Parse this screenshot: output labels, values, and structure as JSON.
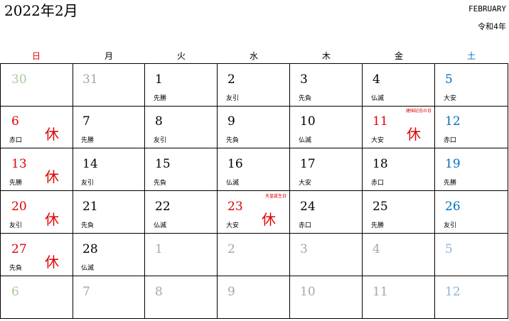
{
  "header": {
    "title": "2022年2月",
    "month_en": "FEBRUARY",
    "era": "令和4年"
  },
  "weekdays": [
    "日",
    "月",
    "火",
    "水",
    "木",
    "金",
    "土"
  ],
  "colors": {
    "sunday_holiday": "#e00000",
    "saturday": "#0070c0",
    "other_month": "#a6a6a6"
  },
  "weeks": [
    [
      {
        "day": "30",
        "rokuyo": "",
        "style": "greygreen",
        "kyu": "",
        "holiday": ""
      },
      {
        "day": "31",
        "rokuyo": "",
        "style": "grey",
        "kyu": "",
        "holiday": ""
      },
      {
        "day": "1",
        "rokuyo": "先勝",
        "style": "black",
        "kyu": "",
        "holiday": ""
      },
      {
        "day": "2",
        "rokuyo": "友引",
        "style": "black",
        "kyu": "",
        "holiday": ""
      },
      {
        "day": "3",
        "rokuyo": "先負",
        "style": "black",
        "kyu": "",
        "holiday": ""
      },
      {
        "day": "4",
        "rokuyo": "仏滅",
        "style": "black",
        "kyu": "",
        "holiday": ""
      },
      {
        "day": "5",
        "rokuyo": "大安",
        "style": "blue",
        "kyu": "",
        "holiday": ""
      }
    ],
    [
      {
        "day": "6",
        "rokuyo": "赤口",
        "style": "red",
        "kyu": "休",
        "holiday": ""
      },
      {
        "day": "7",
        "rokuyo": "先勝",
        "style": "black",
        "kyu": "",
        "holiday": ""
      },
      {
        "day": "8",
        "rokuyo": "友引",
        "style": "black",
        "kyu": "",
        "holiday": ""
      },
      {
        "day": "9",
        "rokuyo": "先負",
        "style": "black",
        "kyu": "",
        "holiday": ""
      },
      {
        "day": "10",
        "rokuyo": "仏滅",
        "style": "black",
        "kyu": "",
        "holiday": ""
      },
      {
        "day": "11",
        "rokuyo": "大安",
        "style": "red",
        "kyu": "休",
        "holiday": "建国記念の日"
      },
      {
        "day": "12",
        "rokuyo": "赤口",
        "style": "blue",
        "kyu": "",
        "holiday": ""
      }
    ],
    [
      {
        "day": "13",
        "rokuyo": "先勝",
        "style": "red",
        "kyu": "休",
        "holiday": ""
      },
      {
        "day": "14",
        "rokuyo": "友引",
        "style": "black",
        "kyu": "",
        "holiday": ""
      },
      {
        "day": "15",
        "rokuyo": "先負",
        "style": "black",
        "kyu": "",
        "holiday": ""
      },
      {
        "day": "16",
        "rokuyo": "仏滅",
        "style": "black",
        "kyu": "",
        "holiday": ""
      },
      {
        "day": "17",
        "rokuyo": "大安",
        "style": "black",
        "kyu": "",
        "holiday": ""
      },
      {
        "day": "18",
        "rokuyo": "赤口",
        "style": "black",
        "kyu": "",
        "holiday": ""
      },
      {
        "day": "19",
        "rokuyo": "先勝",
        "style": "blue",
        "kyu": "",
        "holiday": ""
      }
    ],
    [
      {
        "day": "20",
        "rokuyo": "友引",
        "style": "red",
        "kyu": "休",
        "holiday": ""
      },
      {
        "day": "21",
        "rokuyo": "先負",
        "style": "black",
        "kyu": "",
        "holiday": ""
      },
      {
        "day": "22",
        "rokuyo": "仏滅",
        "style": "black",
        "kyu": "",
        "holiday": ""
      },
      {
        "day": "23",
        "rokuyo": "大安",
        "style": "red",
        "kyu": "休",
        "holiday": "天皇誕生日"
      },
      {
        "day": "24",
        "rokuyo": "赤口",
        "style": "black",
        "kyu": "",
        "holiday": ""
      },
      {
        "day": "25",
        "rokuyo": "先勝",
        "style": "black",
        "kyu": "",
        "holiday": ""
      },
      {
        "day": "26",
        "rokuyo": "友引",
        "style": "blue",
        "kyu": "",
        "holiday": ""
      }
    ],
    [
      {
        "day": "27",
        "rokuyo": "先負",
        "style": "red",
        "kyu": "休",
        "holiday": ""
      },
      {
        "day": "28",
        "rokuyo": "仏滅",
        "style": "black",
        "kyu": "",
        "holiday": ""
      },
      {
        "day": "1",
        "rokuyo": "",
        "style": "grey",
        "kyu": "",
        "holiday": ""
      },
      {
        "day": "2",
        "rokuyo": "",
        "style": "grey",
        "kyu": "",
        "holiday": ""
      },
      {
        "day": "3",
        "rokuyo": "",
        "style": "grey",
        "kyu": "",
        "holiday": ""
      },
      {
        "day": "4",
        "rokuyo": "",
        "style": "grey",
        "kyu": "",
        "holiday": ""
      },
      {
        "day": "5",
        "rokuyo": "",
        "style": "greyblue",
        "kyu": "",
        "holiday": ""
      }
    ],
    [
      {
        "day": "6",
        "rokuyo": "",
        "style": "greygreen",
        "kyu": "",
        "holiday": ""
      },
      {
        "day": "7",
        "rokuyo": "",
        "style": "grey",
        "kyu": "",
        "holiday": ""
      },
      {
        "day": "8",
        "rokuyo": "",
        "style": "grey",
        "kyu": "",
        "holiday": ""
      },
      {
        "day": "9",
        "rokuyo": "",
        "style": "grey",
        "kyu": "",
        "holiday": ""
      },
      {
        "day": "10",
        "rokuyo": "",
        "style": "grey",
        "kyu": "",
        "holiday": ""
      },
      {
        "day": "11",
        "rokuyo": "",
        "style": "grey",
        "kyu": "",
        "holiday": ""
      },
      {
        "day": "12",
        "rokuyo": "",
        "style": "greyblue",
        "kyu": "",
        "holiday": ""
      }
    ]
  ]
}
